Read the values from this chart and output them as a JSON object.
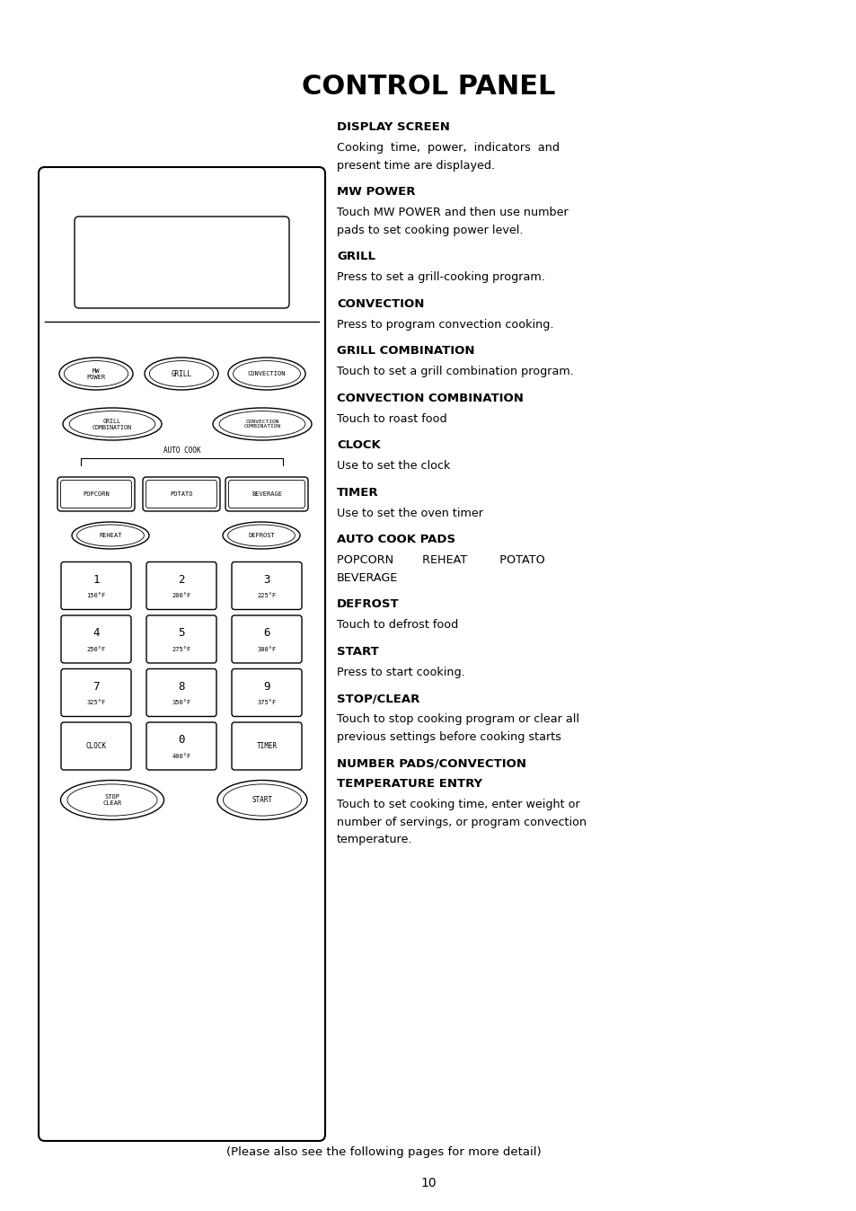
{
  "title": "CONTROL PANEL",
  "title_fontsize": 22,
  "bg_color": "#ffffff",
  "text_color": "#000000",
  "page_number": "10",
  "footer_text": "(Please also see the following pages for more detail)",
  "right_sections": [
    {
      "heading": "DISPLAY SCREEN",
      "body": "Cooking  time,  power,  indicators  and\npresent time are displayed."
    },
    {
      "heading": "MW POWER",
      "body": "Touch MW POWER and then use number\npads to set cooking power level."
    },
    {
      "heading": "GRILL",
      "body": "Press to set a grill-cooking program."
    },
    {
      "heading": "CONVECTION",
      "body": "Press to program convection cooking."
    },
    {
      "heading": "GRILL COMBINATION",
      "body": "Touch to set a grill combination program."
    },
    {
      "heading": "CONVECTION COMBINATION",
      "body": "Touch to roast food"
    },
    {
      "heading": "CLOCK",
      "body": "Use to set the clock"
    },
    {
      "heading": "TIMER",
      "body": "Use to set the oven timer"
    },
    {
      "heading": "AUTO COOK PADS",
      "body": "POPCORN        REHEAT         POTATO\nBEVERAGE"
    },
    {
      "heading": "DEFROST",
      "body": "Touch to defrost food"
    },
    {
      "heading": "START",
      "body": "Press to start cooking."
    },
    {
      "heading": "STOP/CLEAR",
      "body": "Touch to stop cooking program or clear all\nprevious settings before cooking starts"
    },
    {
      "heading": "NUMBER PADS/CONVECTION\nTEMPERATURE ENTRY",
      "body": "Touch to set cooking time, enter weight or\nnumber of servings, or program convection\ntemperature."
    }
  ],
  "num_pads": [
    [
      "1",
      "150°F"
    ],
    [
      "2",
      "200°F"
    ],
    [
      "3",
      "225°F"
    ],
    [
      "4",
      "250°F"
    ],
    [
      "5",
      "275°F"
    ],
    [
      "6",
      "300°F"
    ],
    [
      "7",
      "325°F"
    ],
    [
      "8",
      "350°F"
    ],
    [
      "9",
      "375°F"
    ]
  ]
}
